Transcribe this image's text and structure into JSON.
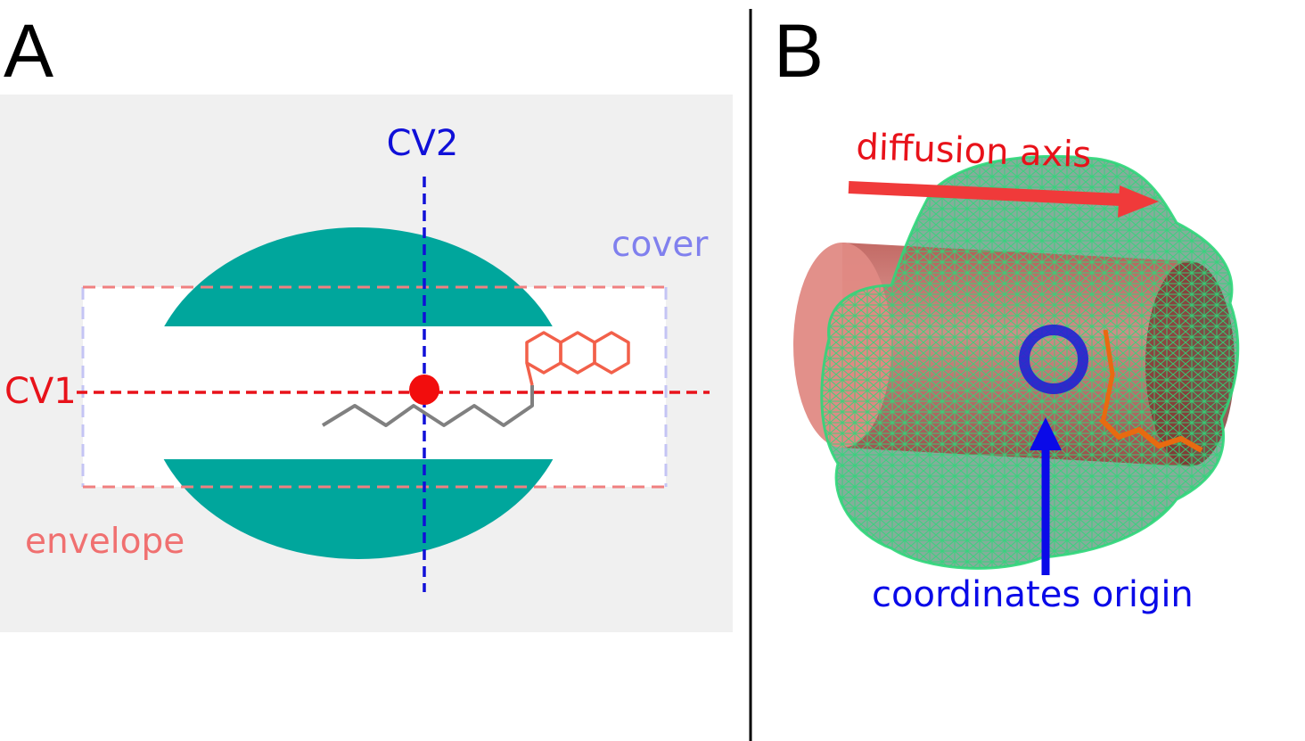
{
  "panel_a": {
    "letter": "A",
    "labels": {
      "cv1": "CV1",
      "cv2": "CV2",
      "cover": "cover",
      "envelope": "envelope"
    }
  },
  "panel_b": {
    "letter": "B",
    "labels": {
      "diffusion_axis": "diffusion axis",
      "coordinates_origin": "coordinates origin"
    }
  },
  "colors": {
    "cv1": "#e8121a",
    "cv2": "#1010d8",
    "cover": "#8080ee",
    "envelope": "#f07070",
    "membrane_teal": "#00a69c",
    "membrane_core": "#d4992a",
    "ligand_ring": "#f2604a",
    "ligand_chain": "#808080",
    "protein_mesh": "#2ed87a",
    "channel_cylinder": "#c0605a"
  }
}
